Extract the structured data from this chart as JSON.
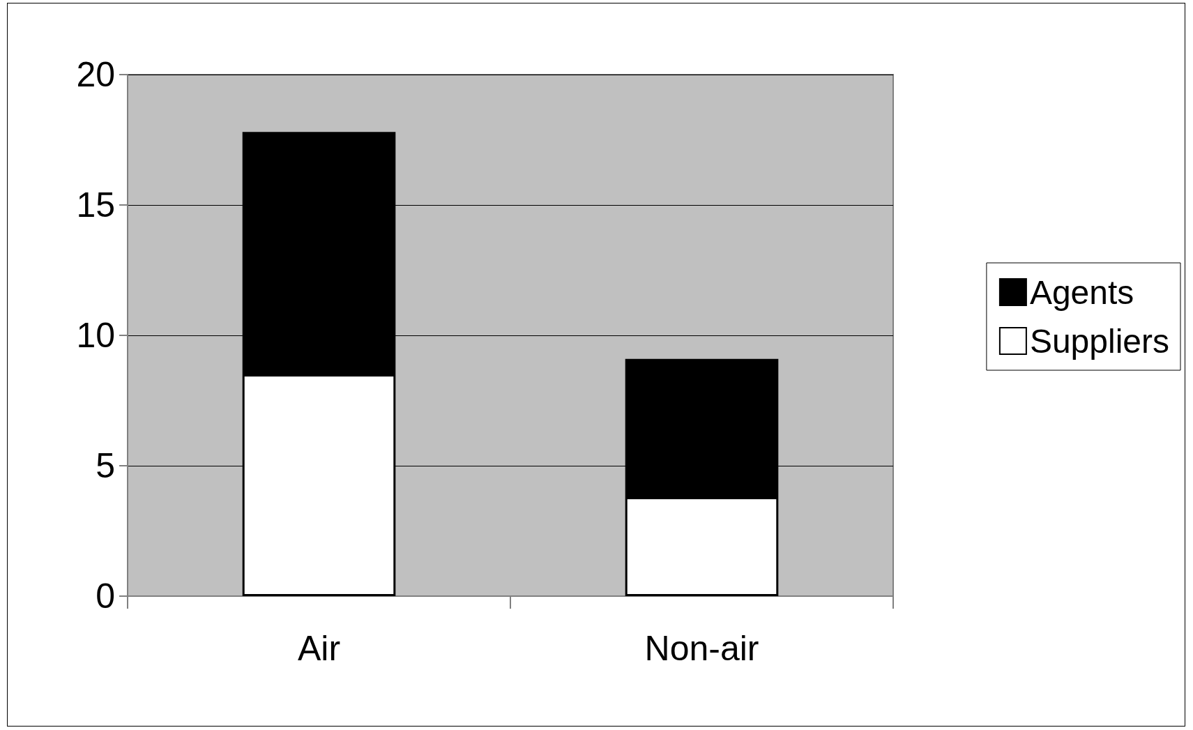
{
  "chart_data": {
    "type": "bar",
    "stacked": true,
    "categories": [
      "Air",
      "Non-air"
    ],
    "series": [
      {
        "name": "Suppliers",
        "color": "#ffffff",
        "values": [
          8.5,
          3.8
        ]
      },
      {
        "name": "Agents",
        "color": "#000000",
        "values": [
          9.3,
          5.3
        ]
      }
    ],
    "ylim": [
      0,
      20
    ],
    "yticks": [
      0,
      5,
      10,
      15,
      20
    ],
    "grid": "y",
    "legend": "right"
  }
}
